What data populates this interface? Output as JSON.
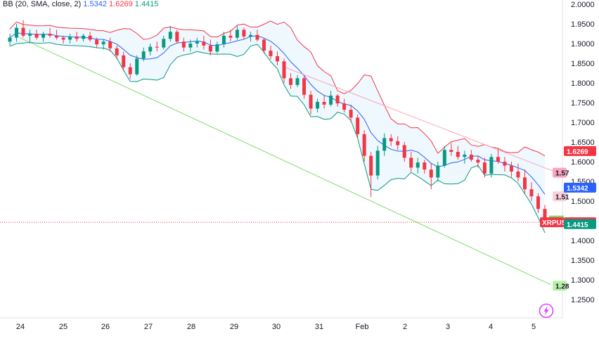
{
  "indicator": {
    "name": "BB (20, SMA, close, 2)",
    "basis": "1.5342",
    "upper": "1.6269",
    "lower": "1.4415"
  },
  "chart_data": {
    "type": "candlestick",
    "symbol": "XRPUSD",
    "ylim": [
      1.225,
      2.0
    ],
    "y_ticks": [
      "2.0000",
      "1.9500",
      "1.9000",
      "1.8500",
      "1.8000",
      "1.7500",
      "1.7000",
      "1.6500",
      "1.6000",
      "1.5500",
      "1.5000",
      "1.4500",
      "1.4000",
      "1.3500",
      "1.3000",
      "1.2500"
    ],
    "x_ticks": [
      "24",
      "25",
      "26",
      "27",
      "28",
      "29",
      "30",
      "31",
      "Feb",
      "2",
      "3",
      "4",
      "5"
    ],
    "candles": [
      [
        1.905,
        1.925,
        1.895,
        1.915
      ],
      [
        1.915,
        1.95,
        1.905,
        1.94
      ],
      [
        1.94,
        1.96,
        1.915,
        1.92
      ],
      [
        1.92,
        1.935,
        1.9,
        1.925
      ],
      [
        1.925,
        1.935,
        1.91,
        1.915
      ],
      [
        1.915,
        1.93,
        1.905,
        1.925
      ],
      [
        1.925,
        1.94,
        1.915,
        1.92
      ],
      [
        1.92,
        1.935,
        1.91,
        1.915
      ],
      [
        1.915,
        1.92,
        1.9,
        1.91
      ],
      [
        1.91,
        1.925,
        1.9,
        1.918
      ],
      [
        1.918,
        1.93,
        1.905,
        1.912
      ],
      [
        1.912,
        1.925,
        1.905,
        1.92
      ],
      [
        1.92,
        1.93,
        1.905,
        1.91
      ],
      [
        1.91,
        1.915,
        1.89,
        1.898
      ],
      [
        1.898,
        1.91,
        1.885,
        1.905
      ],
      [
        1.905,
        1.915,
        1.88,
        1.888
      ],
      [
        1.888,
        1.895,
        1.86,
        1.87
      ],
      [
        1.87,
        1.88,
        1.83,
        1.84
      ],
      [
        1.84,
        1.85,
        1.81,
        1.822
      ],
      [
        1.822,
        1.87,
        1.818,
        1.862
      ],
      [
        1.862,
        1.89,
        1.855,
        1.88
      ],
      [
        1.88,
        1.9,
        1.87,
        1.892
      ],
      [
        1.892,
        1.905,
        1.88,
        1.89
      ],
      [
        1.89,
        1.92,
        1.885,
        1.912
      ],
      [
        1.912,
        1.945,
        1.905,
        1.93
      ],
      [
        1.93,
        1.935,
        1.9,
        1.905
      ],
      [
        1.905,
        1.915,
        1.88,
        1.89
      ],
      [
        1.89,
        1.91,
        1.88,
        1.9
      ],
      [
        1.9,
        1.915,
        1.89,
        1.905
      ],
      [
        1.905,
        1.92,
        1.885,
        1.895
      ],
      [
        1.895,
        1.91,
        1.87,
        1.88
      ],
      [
        1.88,
        1.905,
        1.875,
        1.898
      ],
      [
        1.898,
        1.93,
        1.89,
        1.92
      ],
      [
        1.92,
        1.935,
        1.905,
        1.915
      ],
      [
        1.915,
        1.945,
        1.91,
        1.935
      ],
      [
        1.935,
        1.94,
        1.91,
        1.918
      ],
      [
        1.918,
        1.93,
        1.905,
        1.922
      ],
      [
        1.922,
        1.935,
        1.905,
        1.91
      ],
      [
        1.91,
        1.915,
        1.875,
        1.882
      ],
      [
        1.882,
        1.895,
        1.86,
        1.868
      ],
      [
        1.868,
        1.88,
        1.845,
        1.855
      ],
      [
        1.855,
        1.862,
        1.8,
        1.812
      ],
      [
        1.812,
        1.825,
        1.785,
        1.795
      ],
      [
        1.795,
        1.82,
        1.79,
        1.812
      ],
      [
        1.812,
        1.818,
        1.76,
        1.77
      ],
      [
        1.77,
        1.78,
        1.72,
        1.735
      ],
      [
        1.735,
        1.76,
        1.725,
        1.752
      ],
      [
        1.752,
        1.77,
        1.735,
        1.745
      ],
      [
        1.745,
        1.78,
        1.74,
        1.768
      ],
      [
        1.768,
        1.772,
        1.74,
        1.748
      ],
      [
        1.748,
        1.76,
        1.725,
        1.732
      ],
      [
        1.732,
        1.745,
        1.7,
        1.712
      ],
      [
        1.712,
        1.72,
        1.66,
        1.67
      ],
      [
        1.67,
        1.68,
        1.6,
        1.615
      ],
      [
        1.615,
        1.625,
        1.51,
        1.565
      ],
      [
        1.565,
        1.64,
        1.555,
        1.628
      ],
      [
        1.628,
        1.672,
        1.615,
        1.66
      ],
      [
        1.66,
        1.67,
        1.64,
        1.652
      ],
      [
        1.652,
        1.665,
        1.63,
        1.642
      ],
      [
        1.642,
        1.65,
        1.6,
        1.61
      ],
      [
        1.61,
        1.625,
        1.575,
        1.585
      ],
      [
        1.585,
        1.61,
        1.57,
        1.598
      ],
      [
        1.598,
        1.605,
        1.57,
        1.58
      ],
      [
        1.58,
        1.595,
        1.53,
        1.56
      ],
      [
        1.56,
        1.6,
        1.55,
        1.59
      ],
      [
        1.59,
        1.64,
        1.585,
        1.63
      ],
      [
        1.63,
        1.648,
        1.615,
        1.625
      ],
      [
        1.625,
        1.64,
        1.605,
        1.612
      ],
      [
        1.612,
        1.628,
        1.595,
        1.618
      ],
      [
        1.618,
        1.63,
        1.6,
        1.605
      ],
      [
        1.605,
        1.615,
        1.585,
        1.598
      ],
      [
        1.598,
        1.61,
        1.56,
        1.57
      ],
      [
        1.57,
        1.62,
        1.56,
        1.612
      ],
      [
        1.612,
        1.632,
        1.595,
        1.6
      ],
      [
        1.6,
        1.612,
        1.575,
        1.59
      ],
      [
        1.59,
        1.6,
        1.56,
        1.575
      ],
      [
        1.575,
        1.595,
        1.55,
        1.56
      ],
      [
        1.56,
        1.58,
        1.52,
        1.53
      ],
      [
        1.53,
        1.548,
        1.5,
        1.512
      ],
      [
        1.512,
        1.52,
        1.47,
        1.48
      ],
      [
        1.48,
        1.49,
        1.44,
        1.446
      ]
    ],
    "bb_upper_label": "1.6269",
    "bb_basis_label": "1.5342",
    "bb_lower_label": "1.4415",
    "last_price_label": "1.4461",
    "trendline_upper_label": "1.57",
    "trendline_mid_label": "1.51",
    "trendline_lower_label": "1.28",
    "colors": {
      "up": "#089981",
      "down": "#f23645",
      "basis": "#2962ff",
      "upper": "#f23645",
      "lower": "#089981",
      "trend_lower": "#7fdc6b",
      "trend_upper": "#f8a5b5"
    }
  }
}
